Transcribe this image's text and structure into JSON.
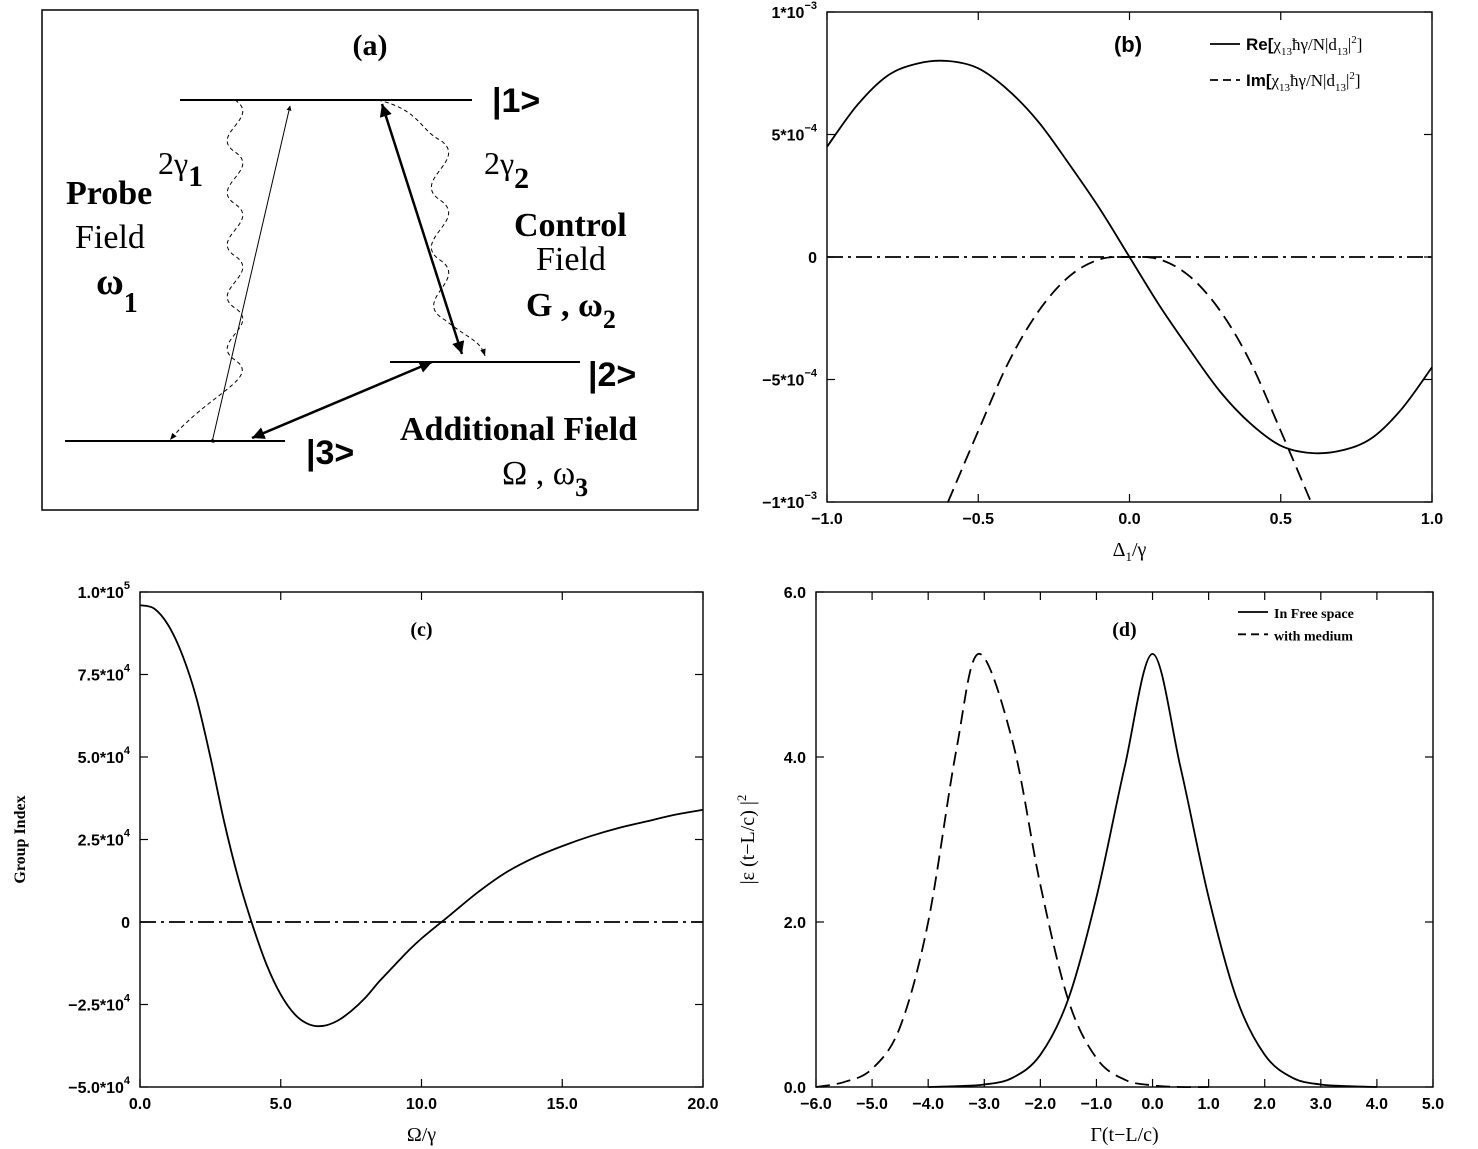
{
  "panel_a": {
    "label": "(a)",
    "levels": {
      "l1": "|1>",
      "l2": "|2>",
      "l3": "|3>"
    },
    "decay1": {
      "base": "2γ",
      "sub": "1"
    },
    "decay2": {
      "base": "2γ",
      "sub": "2"
    },
    "probe": {
      "title": "Probe",
      "field": "Field",
      "freq": "ω",
      "freq_sub": "1"
    },
    "control": {
      "title": "Control",
      "field": "Field",
      "freq": "G , ω",
      "freq_sub": "2"
    },
    "additional": {
      "title": "Additional Field",
      "freq": "Ω ,  ω",
      "freq_sub": "3"
    }
  },
  "chart_data": [
    {
      "panel": "(b)",
      "type": "line",
      "xlabel": "Δ1/γ",
      "ylabel": "",
      "xlim": [
        -1.0,
        1.0
      ],
      "ylim": [
        -0.001,
        0.001
      ],
      "xticks": [
        "-1.0",
        "-0.5",
        "0.0",
        "0.5",
        "1.0"
      ],
      "yticks": [
        "-1*10^-3",
        "-5*10^-4",
        "0",
        "5*10^-4",
        "1*10^-3"
      ],
      "legend_position": "top-right",
      "series": [
        {
          "name": "Re[χ13ħγ/N|d13|^2]",
          "style": "solid",
          "x": [
            -1.0,
            -0.9,
            -0.8,
            -0.7,
            -0.6,
            -0.5,
            -0.4,
            -0.3,
            -0.2,
            -0.1,
            0.0,
            0.1,
            0.2,
            0.3,
            0.4,
            0.5,
            0.6,
            0.7,
            0.8,
            0.9,
            1.0
          ],
          "y": [
            0.00045,
            0.00062,
            0.00074,
            0.00079,
            0.0008,
            0.00077,
            0.00068,
            0.00055,
            0.00038,
            0.0002,
            0.0,
            -0.0002,
            -0.00038,
            -0.00055,
            -0.00068,
            -0.00077,
            -0.0008,
            -0.00079,
            -0.00074,
            -0.00062,
            -0.00045
          ]
        },
        {
          "name": "Im[χ13ħγ/N|d13|^2]",
          "style": "dashed",
          "x": [
            -0.6,
            -0.5,
            -0.4,
            -0.3,
            -0.2,
            -0.1,
            0.0,
            0.1,
            0.2,
            0.3,
            0.4,
            0.5,
            0.6
          ],
          "y": [
            -0.001,
            -0.00071,
            -0.00043,
            -0.00022,
            -8e-05,
            -1e-05,
            0.0,
            -1e-05,
            -8e-05,
            -0.00022,
            -0.00043,
            -0.00071,
            -0.001
          ]
        },
        {
          "name": "",
          "style": "dashdot",
          "x": [
            -1.0,
            1.0
          ],
          "y": [
            0,
            0
          ]
        }
      ]
    },
    {
      "panel": "(c)",
      "type": "line",
      "xlabel": "Ω/γ",
      "ylabel": "Group Index",
      "xlim": [
        0,
        20
      ],
      "ylim": [
        -50000,
        100000
      ],
      "xticks": [
        "0.0",
        "5.0",
        "10.0",
        "15.0",
        "20.0"
      ],
      "yticks": [
        "-5.0*10^4",
        "-2.5*10^4",
        "0",
        "2.5*10^4",
        "5.0*10^4",
        "7.5*10^4",
        "1.0*10^5"
      ],
      "series": [
        {
          "name": "",
          "style": "solid",
          "x": [
            0,
            0.5,
            1,
            1.5,
            2,
            2.5,
            3,
            3.5,
            4,
            4.5,
            5,
            5.5,
            6,
            6.5,
            7,
            7.5,
            8,
            8.5,
            9,
            9.5,
            10,
            11,
            12,
            13,
            14,
            15,
            16,
            17,
            18,
            19,
            20
          ],
          "y": [
            96000,
            95000,
            90000,
            81000,
            68000,
            50000,
            30000,
            13000,
            -1000,
            -13000,
            -22000,
            -28000,
            -31000,
            -31500,
            -30000,
            -27000,
            -23000,
            -18000,
            -13500,
            -9000,
            -5000,
            2000,
            9000,
            15000,
            19500,
            23000,
            26000,
            28500,
            30500,
            32500,
            34000
          ]
        },
        {
          "name": "",
          "style": "dashdot",
          "x": [
            0,
            20
          ],
          "y": [
            0,
            0
          ]
        }
      ]
    },
    {
      "panel": "(d)",
      "type": "line",
      "xlabel": "Γ(t−L/c)",
      "ylabel": "|ε (t−L/c) |^2",
      "xlim": [
        -6.0,
        5.0
      ],
      "ylim": [
        0,
        6.0
      ],
      "xticks": [
        "-6.0",
        "-5.0",
        "-4.0",
        "-3.0",
        "-2.0",
        "-1.0",
        "0.0",
        "1.0",
        "2.0",
        "3.0",
        "4.0",
        "5.0"
      ],
      "yticks": [
        "0.0",
        "2.0",
        "4.0",
        "6.0"
      ],
      "legend_position": "top-right",
      "series": [
        {
          "name": "In Free space",
          "style": "solid",
          "x": [
            -4.0,
            -3.5,
            -3.0,
            -2.5,
            -2.0,
            -1.5,
            -1.0,
            -0.5,
            0.0,
            0.5,
            1.0,
            1.5,
            2.0,
            2.5,
            3.0,
            3.5,
            4.0
          ],
          "y": [
            0.0,
            0.01,
            0.03,
            0.11,
            0.39,
            1.07,
            2.3,
            3.87,
            5.25,
            3.87,
            2.3,
            1.07,
            0.39,
            0.11,
            0.03,
            0.01,
            0.0
          ]
        },
        {
          "name": "with medium",
          "style": "dashed",
          "x": [
            -6.0,
            -5.5,
            -5.0,
            -4.5,
            -4.0,
            -3.5,
            -3.1,
            -2.5,
            -2.0,
            -1.5,
            -1.0,
            -0.5,
            0.0,
            0.5,
            1.0
          ],
          "y": [
            0.0,
            0.06,
            0.22,
            0.73,
            2.0,
            4.08,
            5.25,
            4.2,
            2.45,
            1.05,
            0.35,
            0.09,
            0.02,
            0.0,
            0.0
          ]
        }
      ]
    }
  ]
}
